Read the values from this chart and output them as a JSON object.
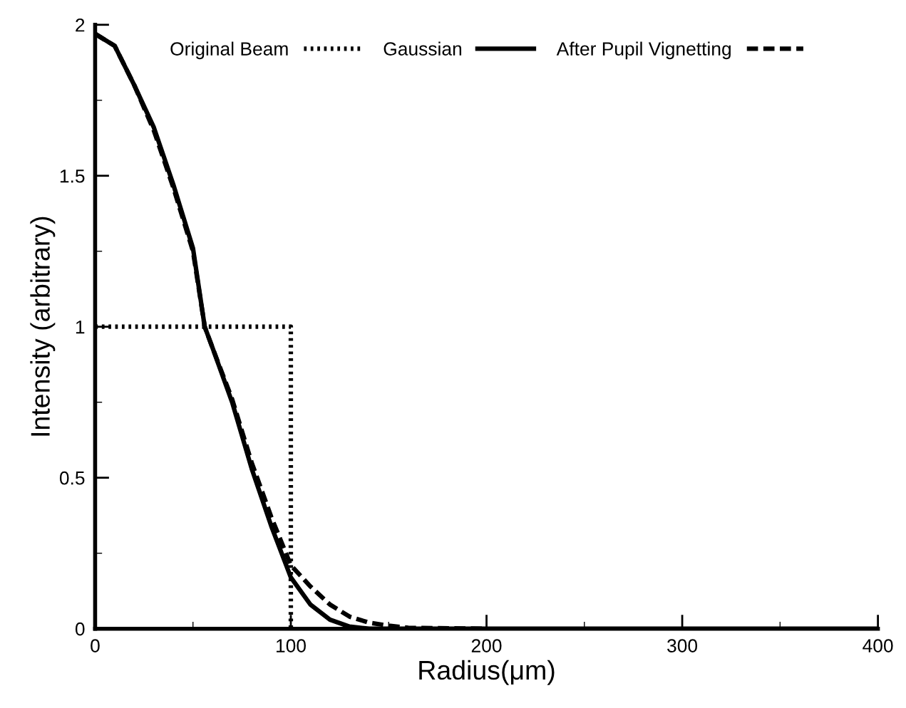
{
  "chart_data": {
    "type": "line",
    "xlabel": "Radius(μm)",
    "ylabel": "Intensity (arbitrary)",
    "xlim": [
      0,
      400
    ],
    "ylim": [
      0,
      2
    ],
    "xticks": [
      0,
      {
        "value": 50,
        "label": null
      },
      100,
      {
        "value": 150,
        "label": null
      },
      200,
      {
        "value": 250,
        "label": null
      },
      300,
      {
        "value": 350,
        "label": null
      },
      400
    ],
    "yticks": [
      0,
      {
        "value": 0.25,
        "label": null
      },
      0.5,
      {
        "value": 0.75,
        "label": null
      },
      1,
      {
        "value": 1.25,
        "label": null
      },
      1.5,
      {
        "value": 1.75,
        "label": null
      },
      2
    ],
    "grid": false,
    "legend": "top",
    "marker": "none",
    "series": [
      {
        "name": "Original Beam",
        "color": "#000000",
        "line_style": "dotted",
        "x": [
          0,
          100,
          100
        ],
        "values": [
          1,
          1,
          0
        ]
      },
      {
        "name": "Gaussian",
        "color": "#000000",
        "line_style": "solid",
        "x": [
          0,
          10,
          20,
          30,
          40,
          50,
          56,
          60,
          70,
          80,
          90,
          100,
          110,
          120,
          130,
          140,
          200,
          300,
          400
        ],
        "values": [
          1.97,
          1.93,
          1.8,
          1.66,
          1.47,
          1.26,
          1.0,
          0.93,
          0.75,
          0.53,
          0.34,
          0.17,
          0.08,
          0.03,
          0.007,
          0,
          0,
          0,
          0
        ]
      },
      {
        "name": "After Pupil Vignetting",
        "color": "#000000",
        "line_style": "dashed",
        "x": [
          0,
          10,
          20,
          30,
          40,
          50,
          56,
          60,
          70,
          80,
          90,
          100,
          110,
          120,
          130,
          140,
          150,
          160,
          200
        ],
        "values": [
          1.97,
          1.93,
          1.8,
          1.65,
          1.46,
          1.25,
          1.0,
          0.93,
          0.76,
          0.55,
          0.37,
          0.21,
          0.14,
          0.08,
          0.04,
          0.02,
          0.01,
          0.003,
          0
        ]
      }
    ]
  }
}
